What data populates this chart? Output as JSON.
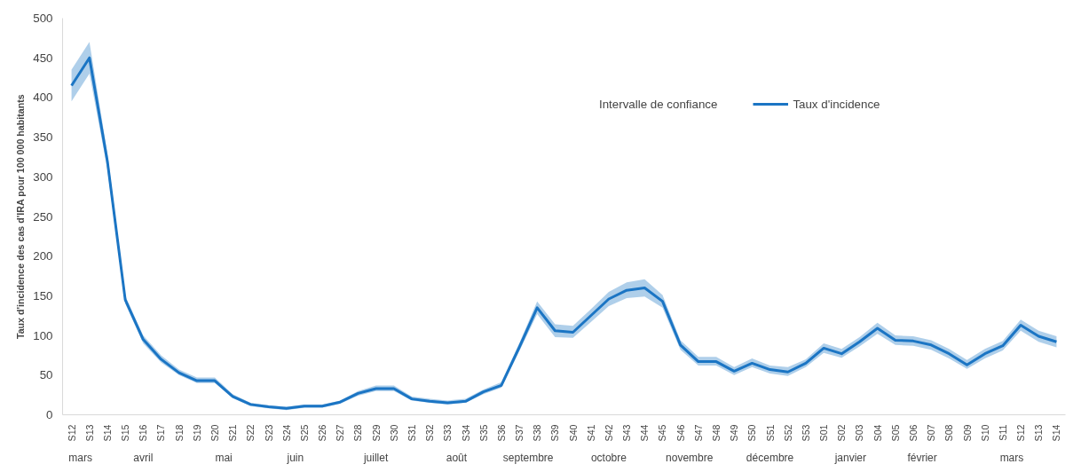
{
  "chart_data": {
    "type": "line",
    "ylabel": "Taux d'incidence des cas d'IRA pour 100 000 habitants",
    "categories": [
      "S12",
      "S13",
      "S14",
      "S15",
      "S16",
      "S17",
      "S18",
      "S19",
      "S20",
      "S21",
      "S22",
      "S23",
      "S24",
      "S25",
      "S26",
      "S27",
      "S28",
      "S29",
      "S30",
      "S31",
      "S32",
      "S33",
      "S34",
      "S35",
      "S36",
      "S37",
      "S38",
      "S39",
      "S40",
      "S41",
      "S42",
      "S43",
      "S44",
      "S45",
      "S46",
      "S47",
      "S48",
      "S49",
      "S50",
      "S51",
      "S52",
      "S53",
      "S01",
      "S02",
      "S03",
      "S04",
      "S05",
      "S06",
      "S07",
      "S08",
      "S09",
      "S10",
      "S11",
      "S12",
      "S13",
      "S14"
    ],
    "series": [
      {
        "name": "Taux d'incidence",
        "color": "#1b75c4",
        "values": [
          415,
          450,
          320,
          145,
          95,
          70,
          53,
          43,
          43,
          23,
          13,
          10,
          8,
          11,
          11,
          16,
          27,
          33,
          33,
          20,
          17,
          15,
          17,
          29,
          37,
          85,
          135,
          106,
          104,
          125,
          146,
          157,
          160,
          143,
          88,
          67,
          67,
          55,
          65,
          57,
          54,
          65,
          84,
          77,
          92,
          109,
          94,
          93,
          88,
          77,
          63,
          77,
          87,
          113,
          99,
          92
        ],
        "lower": [
          395,
          430,
          310,
          140,
          90,
          66,
          50,
          40,
          40,
          21,
          11,
          8,
          6,
          9,
          9,
          14,
          24,
          30,
          30,
          18,
          15,
          13,
          15,
          26,
          34,
          80,
          127,
          98,
          97,
          117,
          137,
          147,
          149,
          135,
          82,
          62,
          62,
          50,
          60,
          52,
          49,
          60,
          78,
          72,
          86,
          102,
          88,
          87,
          82,
          71,
          58,
          71,
          81,
          106,
          92,
          85
        ],
        "upper": [
          435,
          470,
          330,
          150,
          100,
          75,
          57,
          47,
          47,
          26,
          15,
          12,
          10,
          13,
          13,
          18,
          30,
          37,
          37,
          23,
          20,
          18,
          20,
          32,
          41,
          90,
          143,
          114,
          112,
          133,
          155,
          167,
          171,
          151,
          94,
          73,
          73,
          60,
          71,
          62,
          60,
          70,
          90,
          83,
          98,
          116,
          100,
          99,
          94,
          83,
          69,
          83,
          93,
          120,
          106,
          99
        ]
      }
    ],
    "annotations": [
      "Intervalle de confiance",
      "mars",
      "avril",
      "mai",
      "juin",
      "juillet",
      "août",
      "septembre",
      "octobre",
      "novembre",
      "décembre",
      "janvier",
      "février",
      "mars"
    ],
    "ylim": [
      0,
      500
    ],
    "yticks": [
      0,
      50,
      100,
      150,
      200,
      250,
      300,
      350,
      400,
      450,
      500
    ],
    "grid": false,
    "legend": "top right",
    "marker": "none",
    "line_style": "solid"
  }
}
